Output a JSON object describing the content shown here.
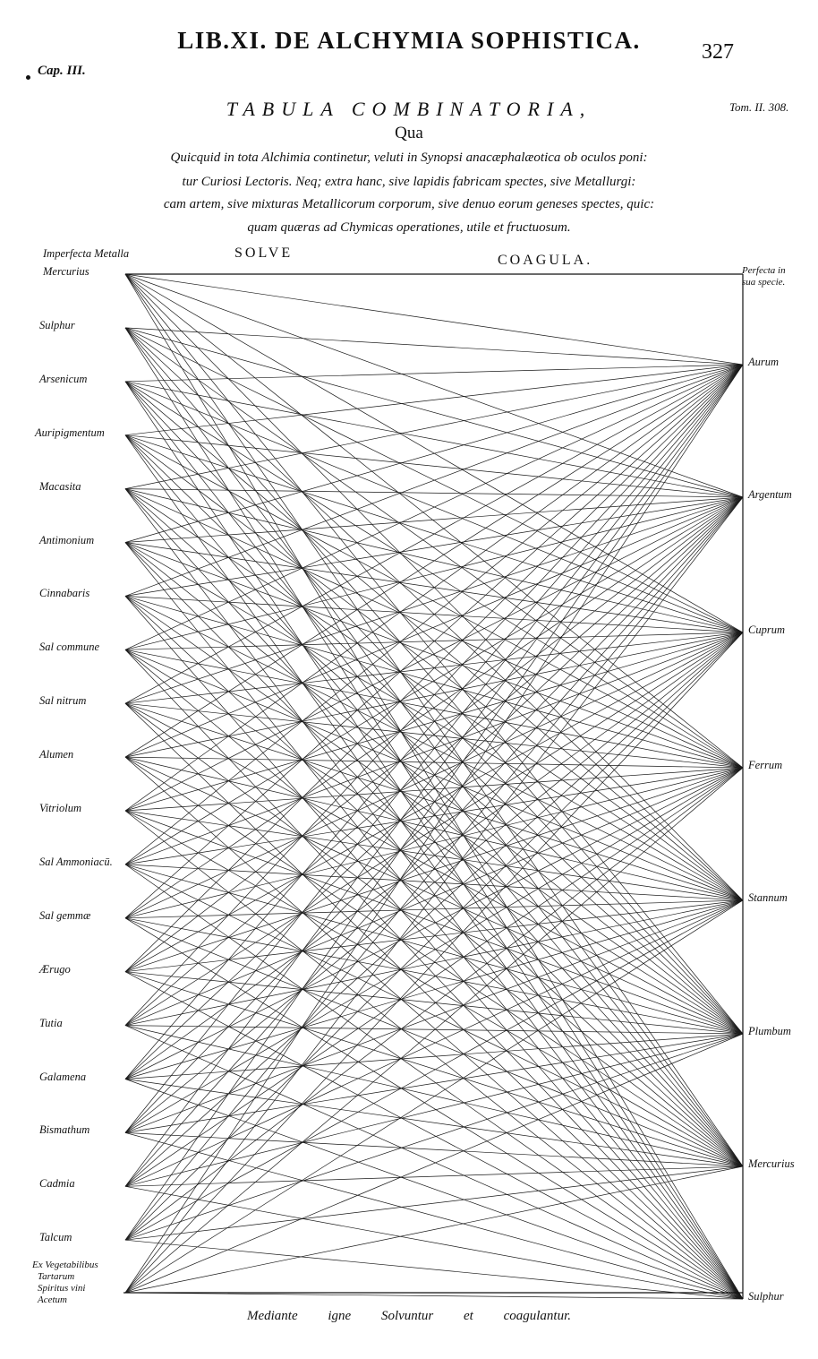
{
  "header": {
    "title": "LIB.XI. DE ALCHYMIA SOPHISTICA.",
    "page_number": "327",
    "chapter": "Cap. III."
  },
  "table": {
    "title": "TABULA COMBINATORIA,",
    "tome_ref": "Tom. II. 308.",
    "qua": "Qua",
    "intro_lines": [
      "Quicquid in tota Alchimia continetur, veluti in Synopsi anacæphalæotica ob oculos poni:",
      "tur Curiosi Lectoris. Neq; extra hanc, sive lapidis fabricam spectes, sive Metallurgi:",
      "cam artem, sive mixturas Metallicorum corporum, sive denuo eorum geneses spectes, quic:",
      "quam quæras ad Chymicas operationes, utile et fructuosum."
    ]
  },
  "diagram": {
    "solve_label": "SOLVE",
    "coagula_label": "COAGULA.",
    "left_header": [
      "Imperfecta Metalla"
    ],
    "right_header": [
      "Perfecta in",
      "sua specie."
    ],
    "left_items": [
      "Mercurius",
      "Sulphur",
      "Arsenicum",
      "Auripigmentum",
      "Macasita",
      "Antimonium",
      "Cinnabaris",
      "Sal commune",
      "Sal nitrum",
      "Alumen",
      "Vitriolum",
      "Sal Ammoniacū.",
      "Sal gemmæ",
      "Ærugo",
      "Tutia",
      "Galamena",
      "Bismathum",
      "Cadmia",
      "Talcum"
    ],
    "last_left_item_lines": [
      "Ex Vegetabilibus",
      "Tartarum",
      "Spiritus vini",
      "Acetum"
    ],
    "right_items": [
      "Aurum",
      "Argentum",
      "Cuprum",
      "Ferrum",
      "Stannum",
      "Plumbum",
      "Mercurius",
      "Sulphur"
    ]
  },
  "footer": "Mediante igne Solvuntur et coagulantur."
}
